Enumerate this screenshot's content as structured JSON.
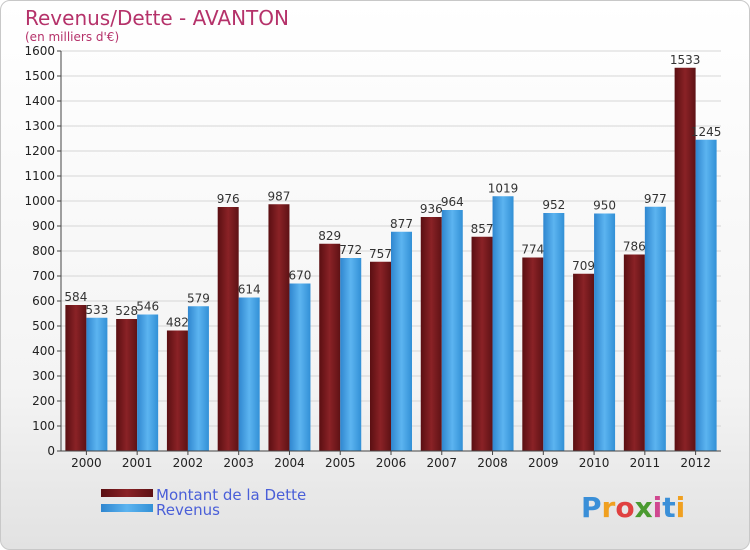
{
  "chart_data": {
    "type": "bar",
    "title": "Revenus/Dette - AVANTON",
    "subtitle": "(en milliers d'€)",
    "categories": [
      "2000",
      "2001",
      "2002",
      "2003",
      "2004",
      "2005",
      "2006",
      "2007",
      "2008",
      "2009",
      "2010",
      "2011",
      "2012"
    ],
    "series": [
      {
        "name": "Montant de la Dette",
        "color": "#7d1c1f",
        "values": [
          584,
          528,
          482,
          976,
          987,
          829,
          757,
          936,
          857,
          774,
          709,
          786,
          1533
        ]
      },
      {
        "name": "Revenus",
        "color": "#3a9be0",
        "values": [
          533,
          546,
          579,
          614,
          670,
          772,
          877,
          964,
          1019,
          952,
          950,
          977,
          1245
        ]
      }
    ],
    "ylim": [
      0,
      1600
    ],
    "yticks": [
      0,
      100,
      200,
      300,
      400,
      500,
      600,
      700,
      800,
      900,
      1000,
      1100,
      1200,
      1300,
      1400,
      1500,
      1600
    ],
    "grid": true,
    "legend_position": "bottom-left"
  },
  "logo": {
    "letters": [
      "P",
      "r",
      "o",
      "x",
      "i",
      "t",
      "i"
    ],
    "colors": [
      "#3a8fd8",
      "#f0a020",
      "#e04040",
      "#4a9a30",
      "#d04890",
      "#3a8fd8",
      "#f0a020"
    ]
  }
}
